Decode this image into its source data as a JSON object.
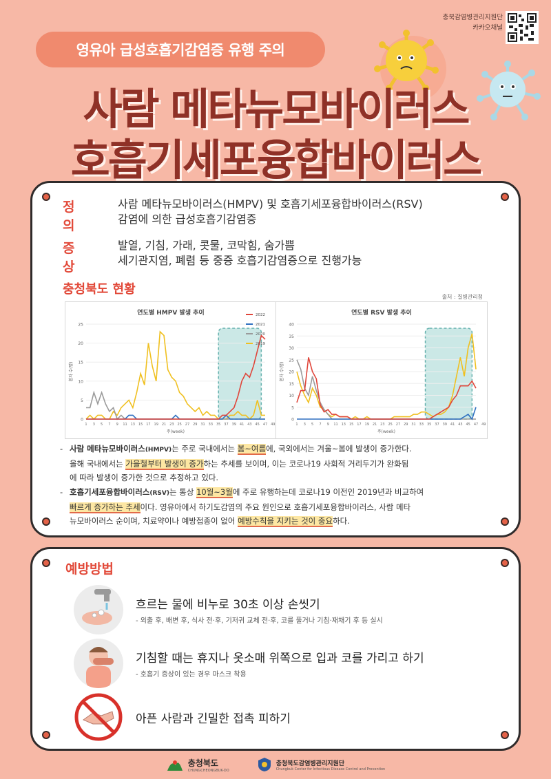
{
  "header": {
    "pill_text": "영유아 급성호흡기감염증 유행 주의",
    "title_line1": "사람 메타뉴모바이러스",
    "title_line2": "호흡기세포융합바이러스",
    "qr_label_1": "충북감염병관리지원단",
    "qr_label_2": "카카오채널"
  },
  "definition": {
    "key1": "정 의",
    "val1_line1": "사람 메타뉴모바이러스(HMPV) 및 호흡기세포융합바이러스(RSV)",
    "val1_line2": "감염에 의한 급성호흡기감염증",
    "key2": "증 상",
    "val2_line1": "발열, 기침, 가래, 콧물, 코막힘, 숨가쁨",
    "val2_line2": "세기관지염, 폐렴 등 중증 호흡기감염증으로 진행가능"
  },
  "status": {
    "title": "충청북도 현황",
    "source": "출처 : 질병관리청"
  },
  "chart_data": [
    {
      "type": "line",
      "title": "연도별 HMPV 발생 추이",
      "xlabel": "주(week)",
      "ylabel": "환자 수(명)",
      "ylim": [
        0,
        25
      ],
      "yticks": [
        "0",
        "5",
        "10",
        "15",
        "20",
        "25"
      ],
      "x_ticks": [
        "1",
        "3",
        "5",
        "7",
        "9",
        "11",
        "13",
        "15",
        "17",
        "19",
        "21",
        "23",
        "25",
        "27",
        "29",
        "31",
        "33",
        "35",
        "37",
        "39",
        "41",
        "43",
        "45",
        "47",
        "49",
        "51"
      ],
      "legend": "top-right",
      "series": [
        {
          "name": "2022",
          "color": "#e0453a",
          "values": [
            0,
            0,
            0,
            0,
            0,
            0,
            0,
            0,
            0,
            0,
            0,
            0,
            0,
            0,
            0,
            0,
            0,
            0,
            0,
            0,
            0,
            0,
            0,
            0,
            0,
            0,
            0,
            0,
            0,
            0,
            0,
            0,
            0,
            0,
            0,
            1,
            1,
            2,
            3,
            6,
            10,
            12,
            11,
            14,
            18,
            22,
            21
          ]
        },
        {
          "name": "2021",
          "color": "#2d6fc0",
          "values": [
            0,
            0,
            0,
            0,
            0,
            0,
            0,
            0,
            0,
            0,
            0,
            1,
            1,
            0,
            0,
            0,
            0,
            0,
            0,
            0,
            0,
            0,
            0,
            1,
            0,
            0,
            0,
            0,
            0,
            0,
            0,
            0,
            0,
            0,
            0,
            0,
            1,
            0,
            0,
            0,
            0,
            0,
            0,
            0,
            0,
            0,
            0
          ]
        },
        {
          "name": "2020",
          "color": "#9a9a9a",
          "values": [
            3,
            3,
            7,
            4,
            7,
            4,
            2,
            3,
            0,
            1,
            0,
            0,
            0,
            0,
            0,
            0,
            0,
            0,
            0,
            0,
            0,
            0,
            0,
            0,
            0,
            0,
            0,
            0,
            0,
            0,
            0,
            0,
            0,
            0,
            0,
            0,
            0,
            0,
            0,
            0,
            0,
            0,
            0,
            0,
            0,
            0,
            0
          ]
        },
        {
          "name": "2019",
          "color": "#f0c020",
          "values": [
            0,
            1,
            0,
            1,
            1,
            0,
            0,
            2,
            1,
            3,
            4,
            5,
            3,
            7,
            12,
            9,
            20,
            14,
            10,
            23,
            22,
            13,
            11,
            10,
            7,
            6,
            4,
            3,
            2,
            3,
            1,
            2,
            1,
            1,
            0,
            0,
            0,
            1,
            1,
            2,
            1,
            1,
            0,
            1,
            5,
            1,
            1
          ]
        }
      ]
    },
    {
      "type": "line",
      "title": "연도별 RSV 발생 추이",
      "xlabel": "주(week)",
      "ylabel": "환자 수(명)",
      "ylim": [
        0,
        40
      ],
      "yticks": [
        "0",
        "5",
        "10",
        "15",
        "20",
        "25",
        "30",
        "35",
        "40"
      ],
      "x_ticks": [
        "1",
        "3",
        "5",
        "7",
        "9",
        "11",
        "13",
        "15",
        "17",
        "19",
        "21",
        "23",
        "25",
        "27",
        "29",
        "31",
        "33",
        "35",
        "37",
        "39",
        "41",
        "43",
        "45",
        "47",
        "49",
        "51"
      ],
      "legend": "none",
      "series": [
        {
          "name": "2022",
          "color": "#e0453a",
          "values": [
            7,
            12,
            12,
            26,
            20,
            17,
            6,
            3,
            4,
            2,
            2,
            1,
            1,
            1,
            0,
            0,
            0,
            0,
            0,
            0,
            0,
            0,
            0,
            0,
            0,
            0,
            0,
            0,
            0,
            0,
            0,
            0,
            0,
            0,
            0,
            1,
            2,
            3,
            4,
            5,
            8,
            10,
            14,
            14,
            14,
            16,
            13
          ]
        },
        {
          "name": "2021",
          "color": "#2d6fc0",
          "values": [
            0,
            0,
            0,
            0,
            0,
            0,
            0,
            0,
            0,
            0,
            0,
            0,
            0,
            0,
            0,
            0,
            0,
            0,
            0,
            0,
            0,
            0,
            0,
            0,
            0,
            0,
            0,
            0,
            0,
            0,
            0,
            0,
            0,
            0,
            0,
            0,
            0,
            0,
            0,
            0,
            0,
            0,
            0,
            1,
            2,
            0,
            5
          ]
        },
        {
          "name": "2020",
          "color": "#9a9a9a",
          "values": [
            25,
            21,
            13,
            10,
            18,
            12,
            7,
            4,
            2,
            0,
            0,
            0,
            0,
            0,
            0,
            0,
            0,
            0,
            0,
            0,
            0,
            0,
            0,
            0,
            0,
            0,
            0,
            0,
            0,
            0,
            0,
            0,
            0,
            0,
            0,
            0,
            0,
            0,
            0,
            0,
            0,
            0,
            0,
            0,
            0,
            0,
            0
          ]
        },
        {
          "name": "2019",
          "color": "#f0c020",
          "values": [
            20,
            14,
            10,
            7,
            13,
            10,
            5,
            4,
            2,
            1,
            2,
            1,
            1,
            1,
            0,
            1,
            0,
            0,
            1,
            0,
            0,
            0,
            0,
            0,
            0,
            1,
            1,
            1,
            1,
            1,
            2,
            2,
            3,
            3,
            2,
            1,
            2,
            2,
            3,
            5,
            10,
            18,
            26,
            18,
            30,
            36,
            21
          ]
        }
      ]
    }
  ],
  "notes": {
    "n1_part1": "사람 메타뉴모바이러스",
    "n1_part1b": "(HMPV)",
    "n1_part2": "는 주로 국내에서는 ",
    "n1_hl1": "봄~여름",
    "n1_part3": "에, 국외에서는 겨울~봄에 발생이 증가한다.",
    "n1_part4": "올해 국내에서는 ",
    "n1_hl2": "가을철부터 발생이 증가",
    "n1_part5": "하는 추세를 보이며, 이는 코로나19 사회적 거리두기가 완화됨",
    "n1_part6": "에 따라 발생이 증가한 것으로 추정하고 있다.",
    "n2_part1": "호흡기세포융합바이러스",
    "n2_part1b": "(RSV)",
    "n2_part2": "는 통상 ",
    "n2_hl1": "10월~3월",
    "n2_part3": "에 주로 유행하는데 코로나19 이전인 2019년과 비교하여",
    "n2_hl2": "빠르게 증가하는 추세",
    "n2_part4": "이다. 영유아에서 하기도감염의 주요 원인으로 호흡기세포융합바이러스, 사람 메타",
    "n2_part5": "뉴모바이러스 순이며, 치료약이나 예방접종이 없어 ",
    "n2_hl3": "예방수칙을 지키는 것이 중요",
    "n2_part6": "하다."
  },
  "prevention": {
    "title": "예방방법",
    "item1_main": "흐르는 물에 비누로 30초 이상 손씻기",
    "item1_sub": "- 외출 후, 배변 후, 식사 전·후, 기저귀 교체 전·후, 코를 풀거나 기침·재채기 후 등 실시",
    "item2_main": "기침할 때는 휴지나 옷소매 위쪽으로 입과 코를 가리고 하기",
    "item2_sub": "- 호흡기 증상이 있는 경우 마스크 착용",
    "item3_main": "아픈 사람과 긴밀한 접촉 피하기"
  },
  "footer": {
    "logo1_name": "충청북도",
    "logo1_sub": "CHUNGCHEONGBUK-DO",
    "logo2_name": "충청북도감염병관리지원단",
    "logo2_sub": "Chungbuk Center for Infectious Disease Control and Prevention"
  }
}
